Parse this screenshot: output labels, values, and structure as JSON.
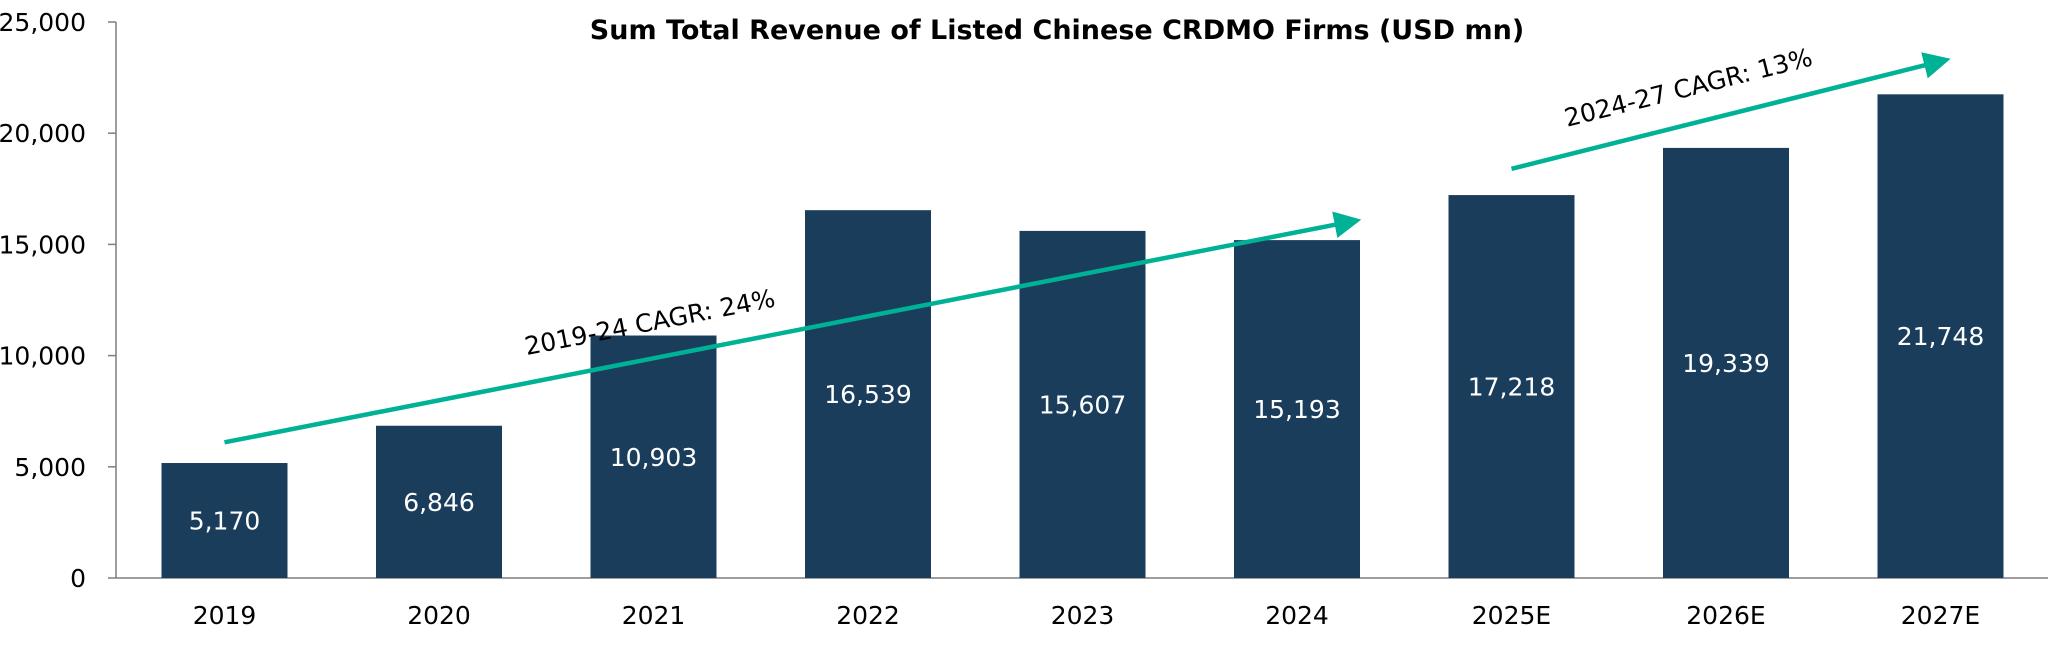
{
  "chart_data": {
    "type": "bar",
    "title": "Sum Total Revenue of Listed Chinese CRDMO Firms (USD mn)",
    "xlabel": "",
    "ylabel": "",
    "categories": [
      "2019",
      "2020",
      "2021",
      "2022",
      "2023",
      "2024",
      "2025E",
      "2026E",
      "2027E"
    ],
    "values": [
      5170,
      6846,
      10903,
      16539,
      15607,
      15193,
      17218,
      19339,
      21748
    ],
    "data_labels": [
      "5,170",
      "6,846",
      "10,903",
      "16,539",
      "15,607",
      "15,193",
      "17,218",
      "19,339",
      "21,748"
    ],
    "ylim": [
      0,
      25000
    ],
    "y_ticks": [
      0,
      5000,
      10000,
      15000,
      20000,
      25000
    ],
    "y_tick_labels": [
      "0",
      "5,000",
      "10,000",
      "15,000",
      "20,000",
      "25,000"
    ],
    "grid": false,
    "legend": "none",
    "annotations": [
      {
        "text": "2019-24 CAGR: 24%",
        "arrow_from": {
          "category": "2019",
          "value": 6100
        },
        "arrow_to": {
          "category": "2024",
          "value": 16000
        }
      },
      {
        "text": "2024-27 CAGR: 13%",
        "arrow_from": {
          "category": "2025E",
          "value": 18400
        },
        "arrow_to": {
          "category": "2027E",
          "value": 23200
        }
      }
    ]
  },
  "colors": {
    "bar": "#1b3d5c",
    "arrow": "#00b295",
    "axis": "#7f7f7f",
    "data_label": "#ffffff",
    "text": "#000000"
  }
}
